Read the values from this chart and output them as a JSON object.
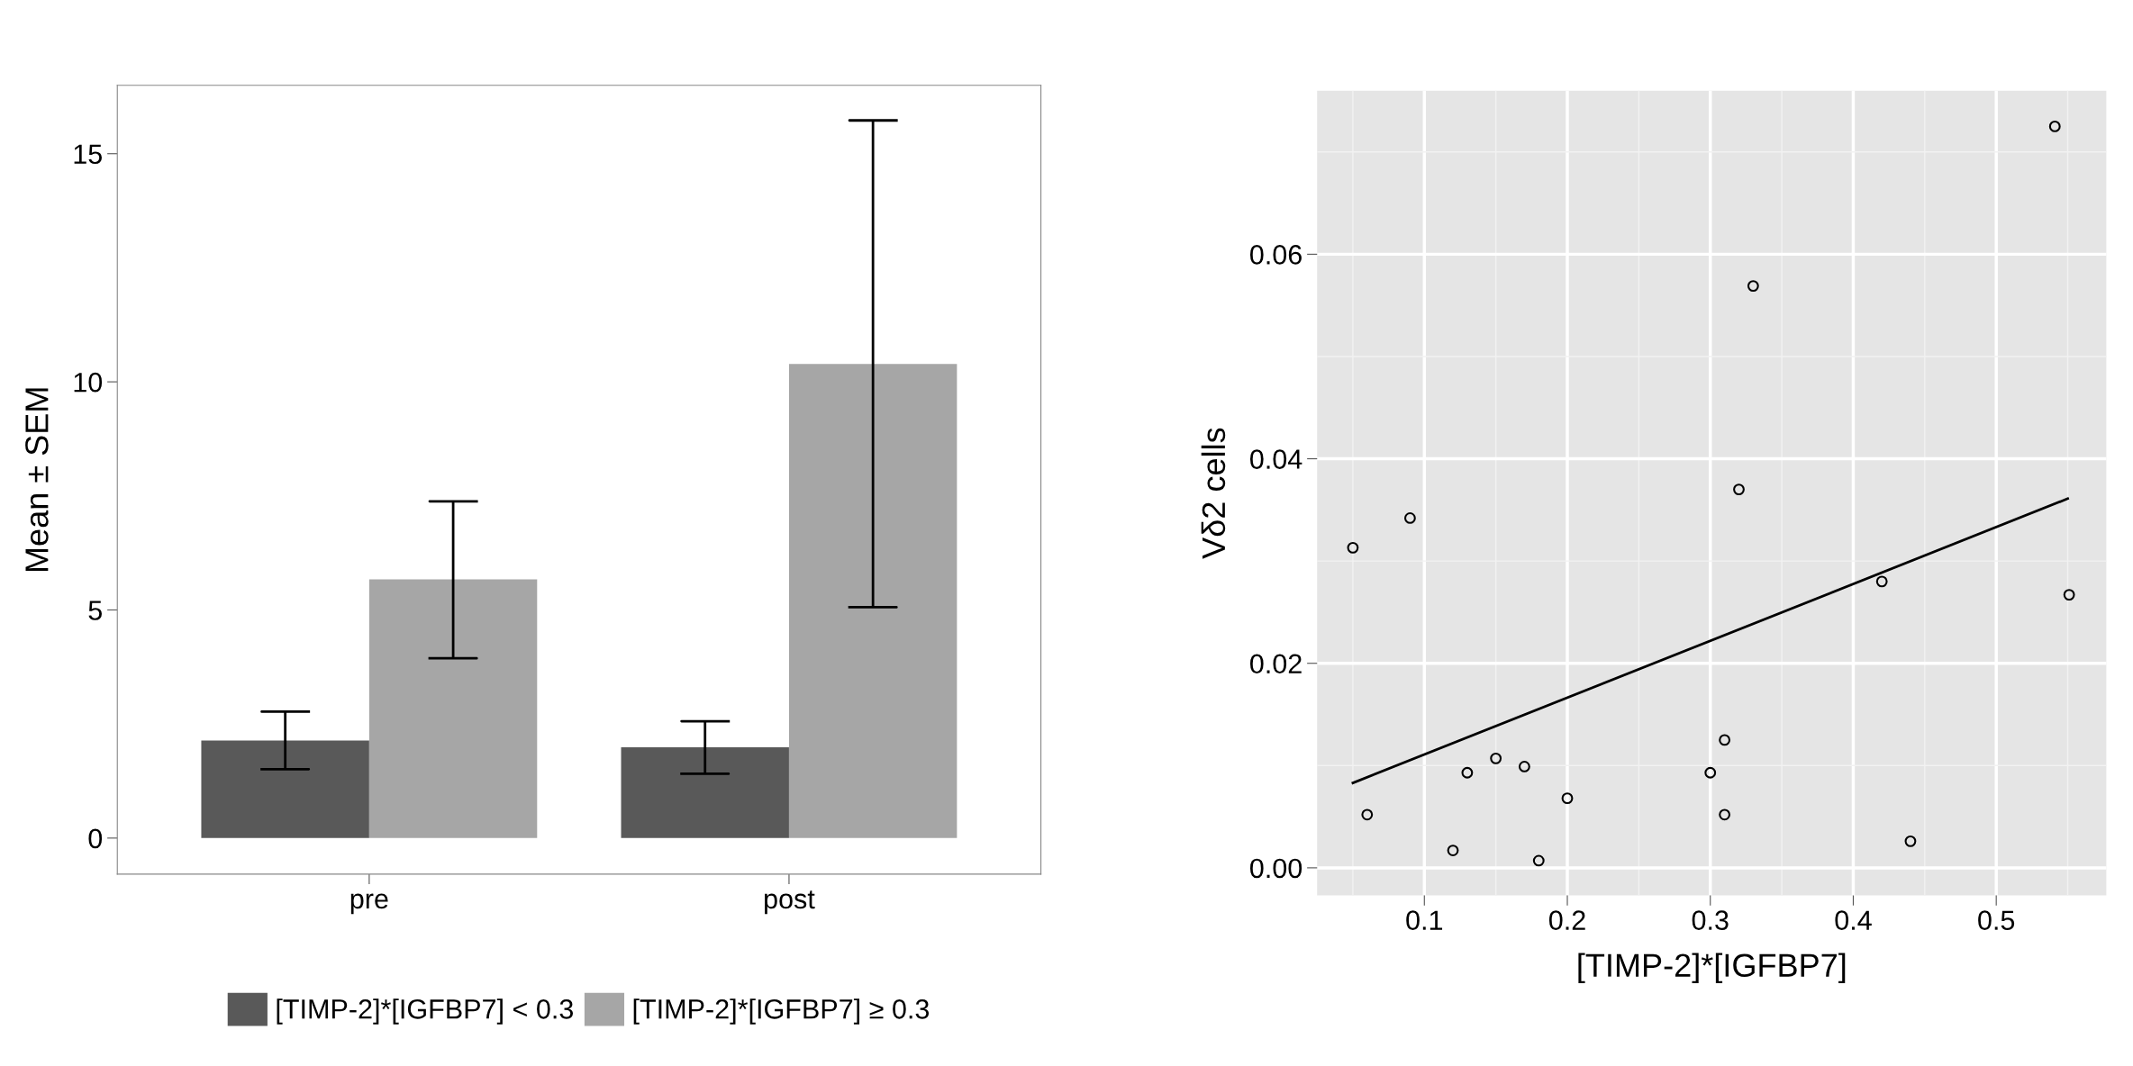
{
  "chart_data": [
    {
      "type": "bar",
      "ylabel": "Mean ± SEM",
      "categories": [
        "pre",
        "post"
      ],
      "ylim": [
        -0.79,
        16.5
      ],
      "yticks": [
        0,
        5,
        10,
        15
      ],
      "grid": false,
      "legend": "bottom",
      "series": [
        {
          "name": "[TIMP-2]*[IGFBP7] < 0.3",
          "color": "#595959",
          "values": [
            2.14,
            1.99
          ],
          "errors": [
            [
              1.51,
              2.77
            ],
            [
              1.41,
              2.56
            ]
          ]
        },
        {
          "name": "[TIMP-2]*[IGFBP7] ≥ 0.3",
          "color": "#a6a6a6",
          "values": [
            5.67,
            10.39
          ],
          "errors": [
            [
              3.94,
              7.38
            ],
            [
              5.06,
              15.73
            ]
          ]
        }
      ]
    },
    {
      "type": "scatter",
      "xlabel": "[TIMP-2]*[IGFBP7]",
      "ylabel": "Vδ2 cells",
      "xlim": [
        0.025,
        0.577
      ],
      "xticks": [
        0.1,
        0.2,
        0.3,
        0.4,
        0.5
      ],
      "ylim": [
        -0.0027,
        0.076
      ],
      "yticks": [
        {
          "value": 0,
          "label": "0.00"
        },
        {
          "value": 0.02,
          "label": "0.02"
        },
        {
          "value": 0.04,
          "label": "0.04"
        },
        {
          "value": 0.06,
          "label": "0.06"
        }
      ],
      "grid": true,
      "series": [
        {
          "type": "scatter",
          "marker": "circle",
          "color": "#000000",
          "x": [
            0.05,
            0.09,
            0.06,
            0.12,
            0.13,
            0.15,
            0.17,
            0.18,
            0.2,
            0.3,
            0.31,
            0.31,
            0.32,
            0.33,
            0.42,
            0.44,
            0.541,
            0.551
          ],
          "values": [
            0.0313,
            0.0342,
            0.0052,
            0.0017,
            0.0093,
            0.0107,
            0.0099,
            0.0007,
            0.0068,
            0.0093,
            0.0125,
            0.0052,
            0.037,
            0.0569,
            0.028,
            0.0026,
            0.0725,
            0.0267
          ]
        },
        {
          "type": "line",
          "color": "#000000",
          "x": [
            0.05,
            0.55
          ],
          "values": [
            0.0083,
            0.0361
          ]
        }
      ]
    }
  ]
}
